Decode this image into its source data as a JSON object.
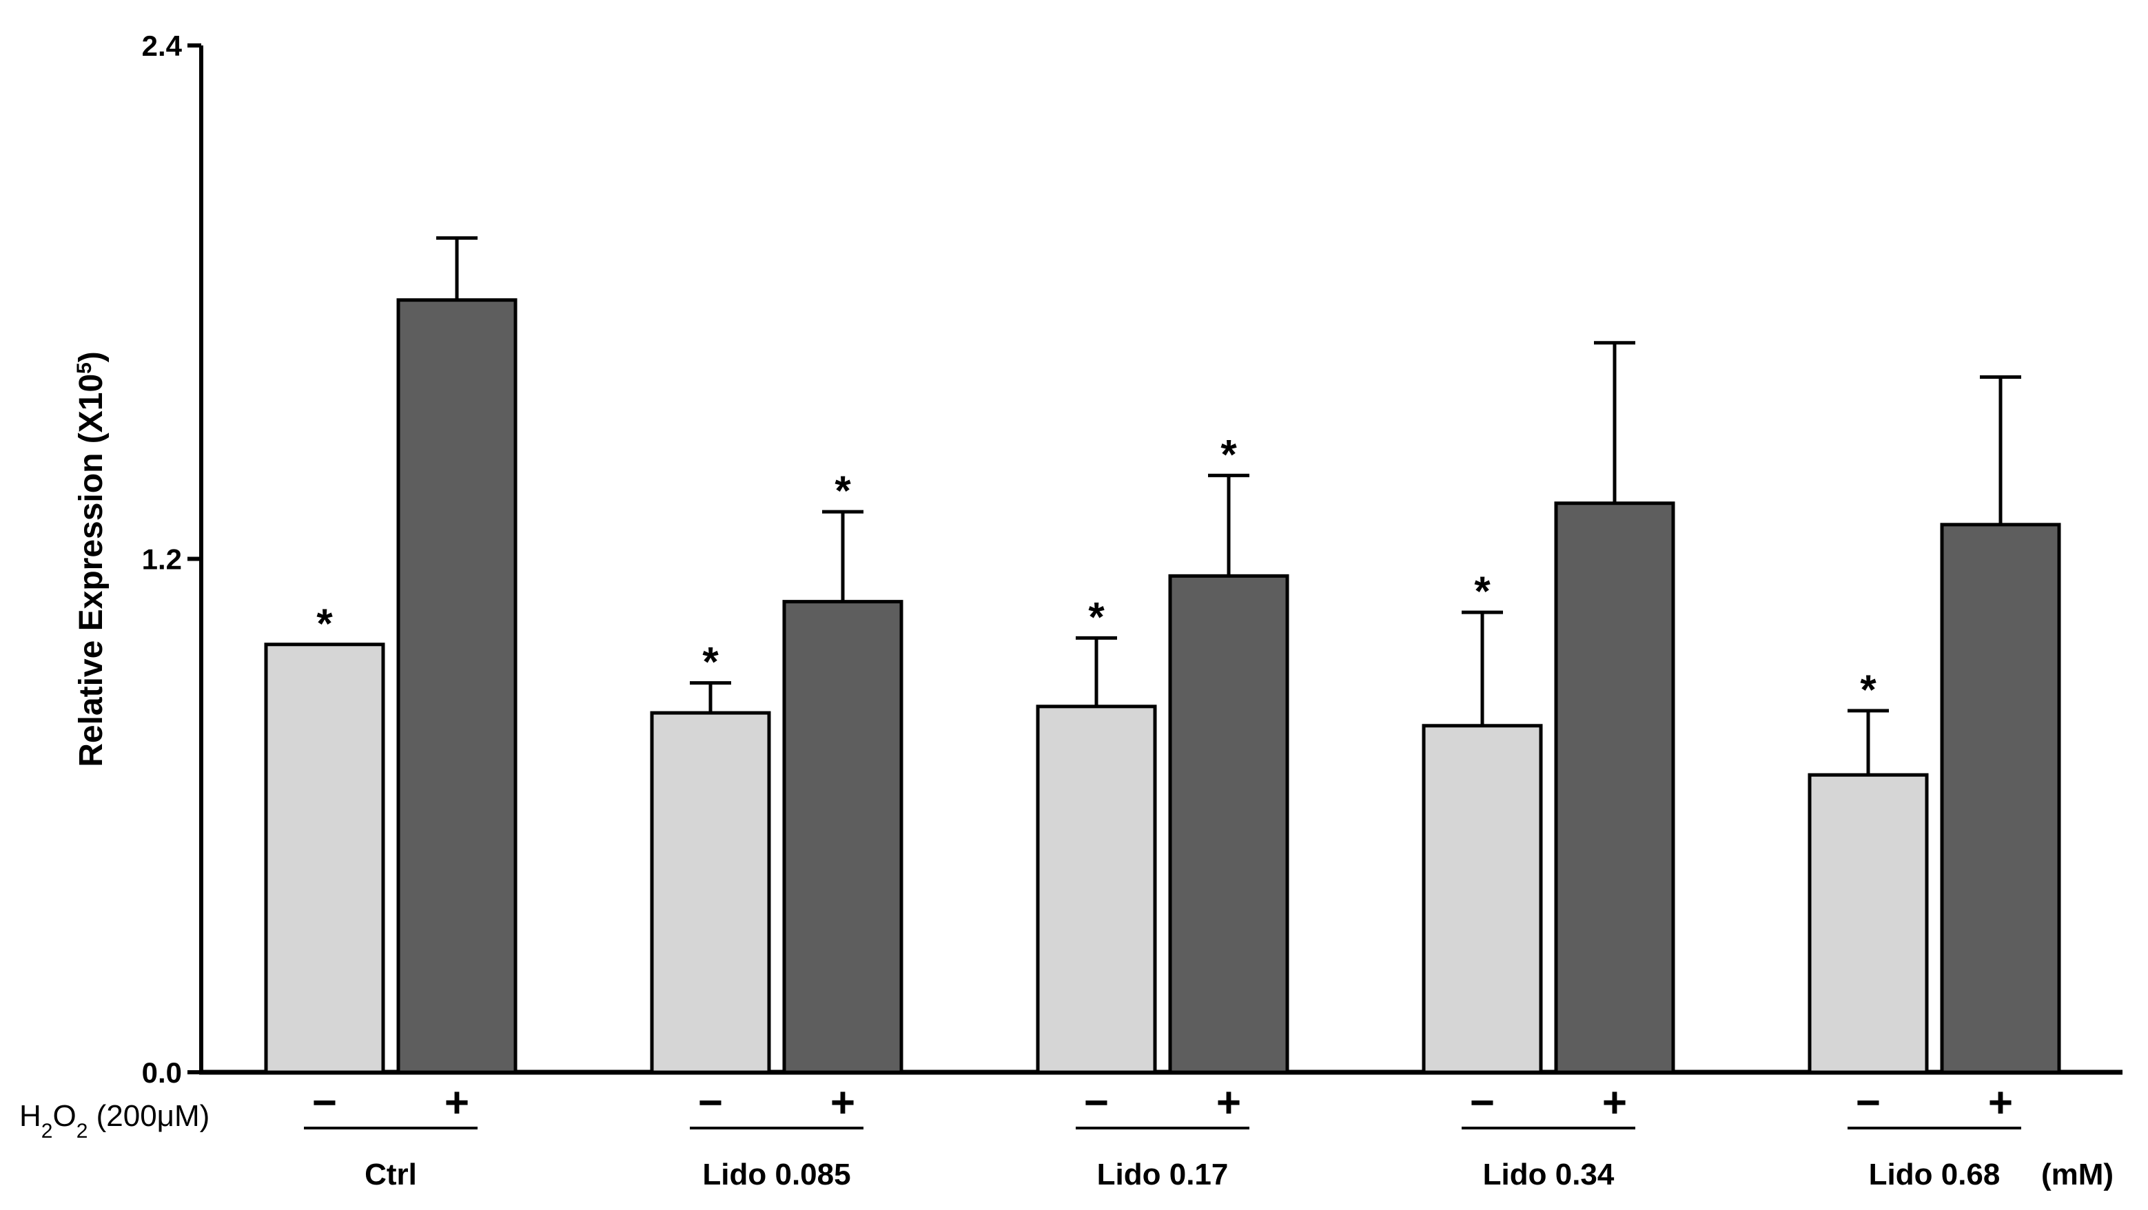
{
  "chart_data": {
    "type": "bar",
    "title": "",
    "xlabel": "",
    "ylabel": "Relative Expression (X10",
    "ylabel_exponent": "5",
    "ylabel_close": ")",
    "ylim": [
      0,
      2.4
    ],
    "y_ticks": [
      {
        "value": 0.0,
        "label": "0.0"
      },
      {
        "value": 1.2,
        "label": "1.2"
      },
      {
        "value": 2.4,
        "label": "2.4"
      }
    ],
    "treatment_label": {
      "prefix": "H",
      "sub1": "2",
      "mid": "O",
      "sub2": "2",
      "suffix": " (200μM)"
    },
    "unit_label": "(mM)",
    "sign_labels": {
      "minus": "−",
      "plus": "+"
    },
    "significance_symbol": "*",
    "colors": {
      "minus_bar": "#d6d6d6",
      "plus_bar": "#5e5e5e",
      "outline": "#000000"
    },
    "categories": [
      "Ctrl",
      "Lido 0.085",
      "Lido 0.17",
      "Lido 0.34",
      "Lido 0.68"
    ],
    "series": [
      {
        "name": "H2O2 −",
        "values": [
          1.0,
          0.84,
          0.855,
          0.81,
          0.695
        ],
        "errors": [
          0.0,
          0.07,
          0.16,
          0.265,
          0.15
        ],
        "significant": [
          true,
          true,
          true,
          true,
          true
        ]
      },
      {
        "name": "H2O2 +",
        "values": [
          1.805,
          1.1,
          1.16,
          1.33,
          1.28
        ],
        "errors": [
          0.145,
          0.21,
          0.235,
          0.375,
          0.345
        ],
        "significant": [
          false,
          true,
          true,
          false,
          false
        ]
      }
    ]
  }
}
